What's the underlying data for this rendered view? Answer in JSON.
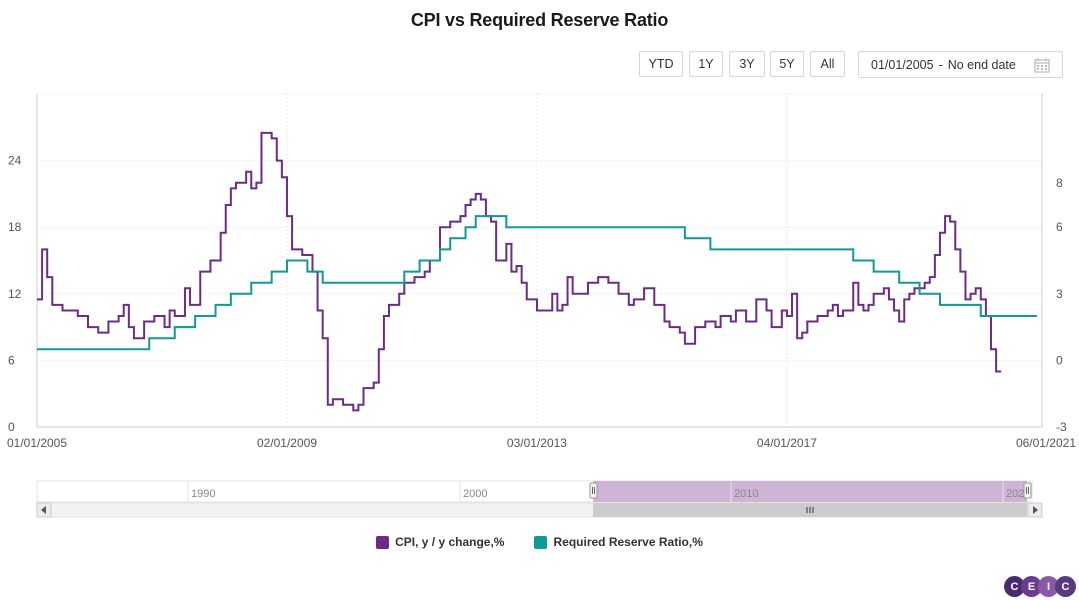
{
  "chart_data": {
    "type": "line",
    "title": "CPI vs Required Reserve Ratio",
    "range_buttons": [
      "YTD",
      "1Y",
      "3Y",
      "5Y",
      "All"
    ],
    "date_range": {
      "start": "01/01/2005",
      "separator": "-",
      "end": "No end date"
    },
    "x_ticks": [
      "01/01/2005",
      "02/01/2009",
      "03/01/2013",
      "04/01/2017",
      "06/01/2021"
    ],
    "x_range": [
      "2005-01",
      "2021-06"
    ],
    "y_left": {
      "ticks": [
        0,
        6,
        12,
        18,
        24
      ],
      "range": [
        0,
        30
      ]
    },
    "y_right": {
      "ticks": [
        -3,
        0,
        3,
        6,
        8
      ],
      "range": [
        -3,
        12
      ]
    },
    "grid": true,
    "legend_position": "bottom",
    "series": [
      {
        "name": "CPI, y / y change,%",
        "axis": "left",
        "color": "#6b2c87",
        "points": [
          [
            "2005-01",
            11.5
          ],
          [
            "2005-02",
            16.0
          ],
          [
            "2005-03",
            13.5
          ],
          [
            "2005-04",
            11.0
          ],
          [
            "2005-06",
            10.5
          ],
          [
            "2005-09",
            10.0
          ],
          [
            "2005-11",
            9.0
          ],
          [
            "2006-01",
            8.5
          ],
          [
            "2006-03",
            9.5
          ],
          [
            "2006-05",
            10.0
          ],
          [
            "2006-06",
            11.0
          ],
          [
            "2006-07",
            9.0
          ],
          [
            "2006-08",
            8.0
          ],
          [
            "2006-10",
            9.5
          ],
          [
            "2006-12",
            10.0
          ],
          [
            "2007-02",
            9.0
          ],
          [
            "2007-03",
            10.5
          ],
          [
            "2007-04",
            10.0
          ],
          [
            "2007-06",
            12.5
          ],
          [
            "2007-07",
            11.0
          ],
          [
            "2007-09",
            14.0
          ],
          [
            "2007-11",
            15.0
          ],
          [
            "2008-01",
            17.5
          ],
          [
            "2008-02",
            20.0
          ],
          [
            "2008-03",
            21.5
          ],
          [
            "2008-04",
            22.0
          ],
          [
            "2008-06",
            23.0
          ],
          [
            "2008-07",
            21.5
          ],
          [
            "2008-08",
            22.0
          ],
          [
            "2008-09",
            26.5
          ],
          [
            "2008-11",
            26.0
          ],
          [
            "2008-12",
            24.0
          ],
          [
            "2009-01",
            22.5
          ],
          [
            "2009-02",
            19.0
          ],
          [
            "2009-03",
            16.0
          ],
          [
            "2009-05",
            15.5
          ],
          [
            "2009-07",
            14.0
          ],
          [
            "2009-08",
            10.5
          ],
          [
            "2009-09",
            8.0
          ],
          [
            "2009-10",
            2.0
          ],
          [
            "2009-11",
            2.5
          ],
          [
            "2010-01",
            2.0
          ],
          [
            "2010-03",
            1.5
          ],
          [
            "2010-04",
            2.0
          ],
          [
            "2010-05",
            3.5
          ],
          [
            "2010-07",
            4.0
          ],
          [
            "2010-08",
            7.0
          ],
          [
            "2010-09",
            10.0
          ],
          [
            "2010-10",
            11.0
          ],
          [
            "2010-12",
            12.0
          ],
          [
            "2011-01",
            13.0
          ],
          [
            "2011-03",
            13.5
          ],
          [
            "2011-05",
            14.0
          ],
          [
            "2011-06",
            15.0
          ],
          [
            "2011-08",
            18.0
          ],
          [
            "2011-10",
            18.5
          ],
          [
            "2011-12",
            19.0
          ],
          [
            "2012-01",
            20.0
          ],
          [
            "2012-02",
            20.5
          ],
          [
            "2012-03",
            21.0
          ],
          [
            "2012-04",
            20.5
          ],
          [
            "2012-05",
            19.0
          ],
          [
            "2012-06",
            18.5
          ],
          [
            "2012-07",
            15.0
          ],
          [
            "2012-09",
            16.5
          ],
          [
            "2012-10",
            14.0
          ],
          [
            "2012-11",
            14.5
          ],
          [
            "2012-12",
            13.0
          ],
          [
            "2013-01",
            11.5
          ],
          [
            "2013-03",
            10.5
          ],
          [
            "2013-05",
            10.5
          ],
          [
            "2013-06",
            12.0
          ],
          [
            "2013-07",
            10.5
          ],
          [
            "2013-08",
            11.0
          ],
          [
            "2013-09",
            13.5
          ],
          [
            "2013-10",
            12.0
          ],
          [
            "2013-11",
            12.0
          ],
          [
            "2014-01",
            13.0
          ],
          [
            "2014-03",
            13.5
          ],
          [
            "2014-05",
            13.0
          ],
          [
            "2014-07",
            12.0
          ],
          [
            "2014-09",
            11.0
          ],
          [
            "2014-10",
            11.5
          ],
          [
            "2014-12",
            12.5
          ],
          [
            "2015-02",
            11.0
          ],
          [
            "2015-04",
            9.5
          ],
          [
            "2015-05",
            9.0
          ],
          [
            "2015-07",
            8.5
          ],
          [
            "2015-08",
            7.5
          ],
          [
            "2015-10",
            9.0
          ],
          [
            "2015-12",
            9.5
          ],
          [
            "2016-02",
            9.0
          ],
          [
            "2016-03",
            10.0
          ],
          [
            "2016-05",
            9.5
          ],
          [
            "2016-06",
            10.5
          ],
          [
            "2016-08",
            9.5
          ],
          [
            "2016-10",
            11.5
          ],
          [
            "2016-12",
            10.5
          ],
          [
            "2017-01",
            9.0
          ],
          [
            "2017-03",
            10.5
          ],
          [
            "2017-04",
            10.0
          ],
          [
            "2017-05",
            12.0
          ],
          [
            "2017-06",
            8.0
          ],
          [
            "2017-07",
            8.5
          ],
          [
            "2017-08",
            9.5
          ],
          [
            "2017-10",
            10.0
          ],
          [
            "2017-12",
            10.5
          ],
          [
            "2018-01",
            11.0
          ],
          [
            "2018-02",
            10.0
          ],
          [
            "2018-03",
            10.5
          ],
          [
            "2018-05",
            13.0
          ],
          [
            "2018-06",
            11.0
          ],
          [
            "2018-07",
            10.5
          ],
          [
            "2018-08",
            11.0
          ],
          [
            "2018-09",
            12.0
          ],
          [
            "2018-11",
            12.5
          ],
          [
            "2018-12",
            11.5
          ],
          [
            "2019-01",
            10.5
          ],
          [
            "2019-02",
            9.5
          ],
          [
            "2019-03",
            11.5
          ],
          [
            "2019-04",
            12.0
          ],
          [
            "2019-05",
            12.5
          ],
          [
            "2019-07",
            13.0
          ],
          [
            "2019-08",
            13.5
          ],
          [
            "2019-09",
            15.5
          ],
          [
            "2019-10",
            17.5
          ],
          [
            "2019-11",
            19.0
          ],
          [
            "2019-12",
            18.5
          ],
          [
            "2020-01",
            16.0
          ],
          [
            "2020-02",
            14.0
          ],
          [
            "2020-03",
            11.5
          ],
          [
            "2020-04",
            12.0
          ],
          [
            "2020-05",
            12.5
          ],
          [
            "2020-06",
            11.5
          ],
          [
            "2020-07",
            10.0
          ],
          [
            "2020-08",
            7.0
          ],
          [
            "2020-09",
            5.0
          ],
          [
            "2020-10",
            5.0
          ]
        ]
      },
      {
        "name": "Required Reserve Ratio,%",
        "axis": "right",
        "color": "#0e9a96",
        "points": [
          [
            "2005-01",
            0.5
          ],
          [
            "2006-09",
            0.5
          ],
          [
            "2006-11",
            1.0
          ],
          [
            "2007-04",
            1.5
          ],
          [
            "2007-08",
            2.0
          ],
          [
            "2007-12",
            2.5
          ],
          [
            "2008-03",
            3.0
          ],
          [
            "2008-07",
            3.5
          ],
          [
            "2008-11",
            4.0
          ],
          [
            "2009-02",
            4.5
          ],
          [
            "2009-06",
            4.0
          ],
          [
            "2009-09",
            3.5
          ],
          [
            "2010-10",
            3.5
          ],
          [
            "2011-01",
            4.0
          ],
          [
            "2011-04",
            4.5
          ],
          [
            "2011-08",
            5.0
          ],
          [
            "2011-10",
            5.5
          ],
          [
            "2012-01",
            6.0
          ],
          [
            "2012-03",
            6.5
          ],
          [
            "2012-09",
            6.0
          ],
          [
            "2013-01",
            6.0
          ],
          [
            "2014-07",
            6.0
          ],
          [
            "2015-08",
            5.5
          ],
          [
            "2016-01",
            5.0
          ],
          [
            "2017-09",
            5.0
          ],
          [
            "2018-05",
            4.5
          ],
          [
            "2018-09",
            4.0
          ],
          [
            "2019-02",
            3.5
          ],
          [
            "2019-06",
            3.0
          ],
          [
            "2019-10",
            2.5
          ],
          [
            "2020-06",
            2.0
          ],
          [
            "2021-05",
            2.0
          ]
        ]
      }
    ]
  },
  "navigator": {
    "labels": [
      "1990",
      "2000",
      "2010",
      "202"
    ]
  },
  "brand": {
    "letters": [
      "C",
      "E",
      "I",
      "C"
    ]
  }
}
